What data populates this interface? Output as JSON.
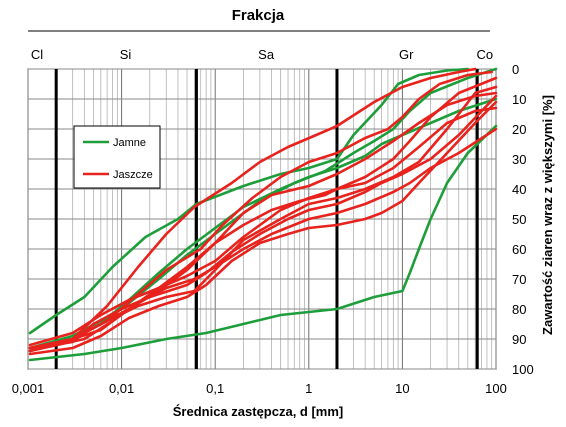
{
  "chart_data": {
    "type": "line",
    "title": "Frakcja",
    "xlabel": "Średnica zastępcza, d [mm]",
    "ylabel": "Zawartość ziaren wraz z większymi [%]",
    "xscale": "log",
    "xlim": [
      0.001,
      100
    ],
    "ylim": [
      0,
      100
    ],
    "y_inverted": true,
    "x_ticks": [
      "0,001",
      "0,01",
      "0,1",
      "1",
      "10",
      "100"
    ],
    "y_ticks": [
      "0",
      "10",
      "20",
      "30",
      "40",
      "50",
      "60",
      "70",
      "80",
      "90",
      "100"
    ],
    "fractions": [
      {
        "label": "Cl",
        "x": 0.00125
      },
      {
        "label": "Si",
        "x": 0.011
      },
      {
        "label": "Sa",
        "x": 0.35
      },
      {
        "label": "Gr",
        "x": 11
      },
      {
        "label": "Co",
        "x": 76
      }
    ],
    "boundaries": [
      0.002,
      0.063,
      2,
      63
    ],
    "grid": true,
    "legend": {
      "placement": "left",
      "entries": [
        {
          "name": "Jamne",
          "color": "#1e9e3a"
        },
        {
          "name": "Jaszcze",
          "color": "#e8221c"
        }
      ]
    },
    "series": [
      {
        "group": "Jamne",
        "color": "#1e9e3a",
        "points": [
          [
            0.00105,
            88
          ],
          [
            0.002,
            82
          ],
          [
            0.004,
            76
          ],
          [
            0.008,
            66
          ],
          [
            0.018,
            56
          ],
          [
            0.04,
            50
          ],
          [
            0.063,
            45
          ],
          [
            0.2,
            39
          ],
          [
            0.5,
            35
          ],
          [
            1,
            33
          ],
          [
            2,
            30
          ],
          [
            3,
            22
          ],
          [
            6,
            12
          ],
          [
            9,
            5
          ],
          [
            15,
            2
          ],
          [
            30,
            0.5
          ],
          [
            50,
            0
          ]
        ]
      },
      {
        "group": "Jamne",
        "color": "#1e9e3a",
        "points": [
          [
            0.00105,
            97
          ],
          [
            0.004,
            95
          ],
          [
            0.01,
            93
          ],
          [
            0.03,
            90
          ],
          [
            0.08,
            88
          ],
          [
            0.2,
            85
          ],
          [
            0.5,
            82
          ],
          [
            1,
            81
          ],
          [
            2,
            80
          ],
          [
            5,
            76
          ],
          [
            10,
            74
          ],
          [
            12,
            68
          ],
          [
            15,
            60
          ],
          [
            20,
            50
          ],
          [
            30,
            38
          ],
          [
            50,
            28
          ],
          [
            100,
            19
          ]
        ]
      },
      {
        "group": "Jamne",
        "color": "#1e9e3a",
        "points": [
          [
            0.00105,
            94
          ],
          [
            0.003,
            90
          ],
          [
            0.006,
            85
          ],
          [
            0.012,
            77
          ],
          [
            0.025,
            68
          ],
          [
            0.05,
            60
          ],
          [
            0.1,
            53
          ],
          [
            0.2,
            46
          ],
          [
            0.5,
            40
          ],
          [
            1,
            36
          ],
          [
            2,
            33
          ],
          [
            4,
            29
          ],
          [
            6,
            25
          ],
          [
            10,
            22
          ],
          [
            20,
            18
          ],
          [
            40,
            14
          ],
          [
            100,
            10
          ]
        ]
      },
      {
        "group": "Jamne",
        "color": "#1e9e3a",
        "points": [
          [
            0.00105,
            93
          ],
          [
            0.003,
            89
          ],
          [
            0.006,
            84
          ],
          [
            0.012,
            78
          ],
          [
            0.025,
            70
          ],
          [
            0.05,
            62
          ],
          [
            0.1,
            55
          ],
          [
            0.3,
            44
          ],
          [
            0.7,
            38
          ],
          [
            1.5,
            34
          ],
          [
            3,
            28
          ],
          [
            5,
            24
          ],
          [
            8,
            20
          ],
          [
            12,
            14
          ],
          [
            20,
            8
          ],
          [
            50,
            3
          ],
          [
            100,
            0
          ]
        ]
      },
      {
        "group": "Jaszcze",
        "color": "#e8221c",
        "points": [
          [
            0.00105,
            93
          ],
          [
            0.003,
            90
          ],
          [
            0.007,
            79
          ],
          [
            0.015,
            66
          ],
          [
            0.03,
            55
          ],
          [
            0.06,
            46
          ],
          [
            0.15,
            38
          ],
          [
            0.3,
            31
          ],
          [
            0.6,
            26
          ],
          [
            1.2,
            22
          ],
          [
            2,
            19
          ],
          [
            5,
            11
          ],
          [
            10,
            6
          ],
          [
            20,
            3
          ],
          [
            40,
            1
          ],
          [
            60,
            0
          ]
        ]
      },
      {
        "group": "Jaszcze",
        "color": "#e8221c",
        "points": [
          [
            0.00105,
            94
          ],
          [
            0.003,
            90
          ],
          [
            0.007,
            84
          ],
          [
            0.015,
            75
          ],
          [
            0.03,
            67
          ],
          [
            0.07,
            60
          ],
          [
            0.12,
            52
          ],
          [
            0.25,
            43
          ],
          [
            0.5,
            36
          ],
          [
            1,
            31
          ],
          [
            2,
            28
          ],
          [
            4,
            23
          ],
          [
            7,
            20
          ],
          [
            10,
            16
          ],
          [
            15,
            10
          ],
          [
            25,
            5
          ],
          [
            50,
            2
          ],
          [
            90,
            1
          ]
        ]
      },
      {
        "group": "Jaszcze",
        "color": "#e8221c",
        "points": [
          [
            0.00105,
            93
          ],
          [
            0.003,
            90
          ],
          [
            0.006,
            87
          ],
          [
            0.012,
            80
          ],
          [
            0.025,
            73
          ],
          [
            0.05,
            66
          ],
          [
            0.1,
            58
          ],
          [
            0.2,
            52
          ],
          [
            0.4,
            47
          ],
          [
            0.8,
            44
          ],
          [
            1.5,
            42
          ],
          [
            2,
            40
          ],
          [
            4,
            38
          ],
          [
            8,
            33
          ],
          [
            15,
            26
          ],
          [
            30,
            18
          ],
          [
            60,
            14
          ],
          [
            100,
            13
          ]
        ]
      },
      {
        "group": "Jaszcze",
        "color": "#e8221c",
        "points": [
          [
            0.00105,
            94
          ],
          [
            0.004,
            90
          ],
          [
            0.008,
            84
          ],
          [
            0.015,
            78
          ],
          [
            0.03,
            73
          ],
          [
            0.06,
            70
          ],
          [
            0.1,
            66
          ],
          [
            0.2,
            60
          ],
          [
            0.4,
            55
          ],
          [
            1,
            50
          ],
          [
            2,
            48
          ],
          [
            4,
            45
          ],
          [
            8,
            41
          ],
          [
            12,
            38
          ],
          [
            20,
            33
          ],
          [
            40,
            28
          ],
          [
            100,
            20
          ]
        ]
      },
      {
        "group": "Jaszcze",
        "color": "#e8221c",
        "points": [
          [
            0.00105,
            93
          ],
          [
            0.003,
            91
          ],
          [
            0.005,
            85
          ],
          [
            0.01,
            80
          ],
          [
            0.02,
            76
          ],
          [
            0.05,
            72
          ],
          [
            0.08,
            68
          ],
          [
            0.15,
            61
          ],
          [
            0.3,
            55
          ],
          [
            0.6,
            50
          ],
          [
            1,
            47
          ],
          [
            2,
            45
          ],
          [
            4,
            41
          ],
          [
            6,
            38
          ],
          [
            10,
            35
          ],
          [
            20,
            30
          ],
          [
            40,
            22
          ],
          [
            100,
            9
          ]
        ]
      },
      {
        "group": "Jaszcze",
        "color": "#e8221c",
        "points": [
          [
            0.00105,
            92
          ],
          [
            0.003,
            88
          ],
          [
            0.006,
            82
          ],
          [
            0.012,
            77
          ],
          [
            0.025,
            73
          ],
          [
            0.05,
            69
          ],
          [
            0.1,
            64
          ],
          [
            0.2,
            56
          ],
          [
            0.5,
            47
          ],
          [
            1,
            43
          ],
          [
            2,
            40
          ],
          [
            4,
            36
          ],
          [
            8,
            30
          ],
          [
            12,
            24
          ],
          [
            20,
            16
          ],
          [
            40,
            8
          ],
          [
            100,
            3
          ]
        ]
      },
      {
        "group": "Jaszcze",
        "color": "#e8221c",
        "points": [
          [
            0.00105,
            94
          ],
          [
            0.003,
            90
          ],
          [
            0.007,
            84
          ],
          [
            0.015,
            79
          ],
          [
            0.03,
            76
          ],
          [
            0.06,
            74
          ],
          [
            0.1,
            67
          ],
          [
            0.2,
            57
          ],
          [
            0.5,
            50
          ],
          [
            1,
            45
          ],
          [
            2,
            43
          ],
          [
            4,
            40
          ],
          [
            8,
            36
          ],
          [
            15,
            31
          ],
          [
            30,
            20
          ],
          [
            60,
            8
          ],
          [
            100,
            6
          ]
        ]
      },
      {
        "group": "Jaszcze",
        "color": "#e8221c",
        "points": [
          [
            0.00105,
            93
          ],
          [
            0.003,
            90
          ],
          [
            0.006,
            85
          ],
          [
            0.012,
            80
          ],
          [
            0.025,
            74
          ],
          [
            0.05,
            67
          ],
          [
            0.1,
            58
          ],
          [
            0.2,
            48
          ],
          [
            0.4,
            42
          ],
          [
            1,
            39
          ],
          [
            2,
            35
          ],
          [
            4,
            30
          ],
          [
            8,
            24
          ],
          [
            15,
            18
          ],
          [
            30,
            12
          ],
          [
            60,
            9
          ],
          [
            100,
            8
          ]
        ]
      },
      {
        "group": "Jaszcze",
        "color": "#e8221c",
        "points": [
          [
            0.00105,
            95
          ],
          [
            0.003,
            93
          ],
          [
            0.006,
            89
          ],
          [
            0.012,
            83
          ],
          [
            0.025,
            79
          ],
          [
            0.05,
            76
          ],
          [
            0.08,
            72
          ],
          [
            0.15,
            64
          ],
          [
            0.3,
            58
          ],
          [
            0.6,
            55
          ],
          [
            1,
            53
          ],
          [
            2,
            52
          ],
          [
            4,
            50
          ],
          [
            6,
            48
          ],
          [
            10,
            44
          ],
          [
            15,
            38
          ],
          [
            30,
            28
          ],
          [
            60,
            18
          ],
          [
            100,
            11
          ]
        ]
      }
    ]
  }
}
